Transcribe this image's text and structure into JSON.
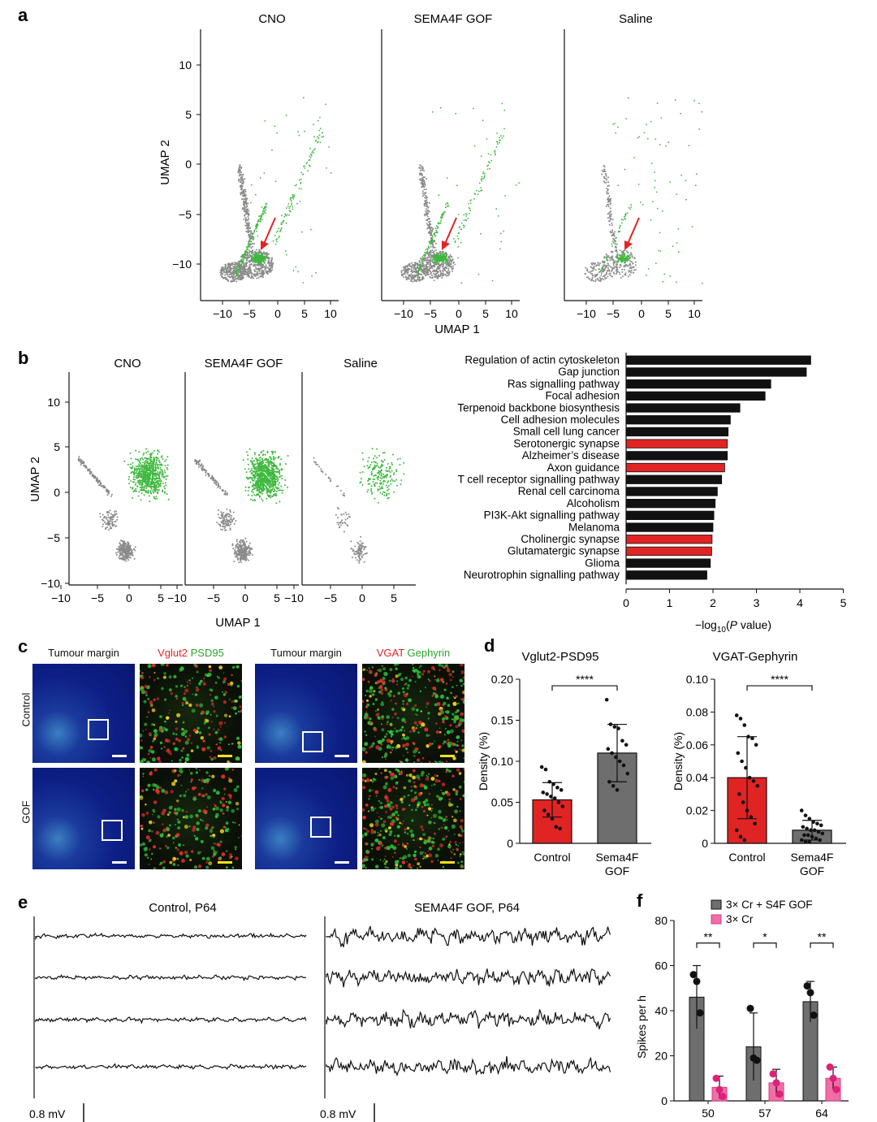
{
  "panel_letters": {
    "a": "a",
    "b": "b",
    "c": "c",
    "d": "d",
    "e": "e",
    "f": "f"
  },
  "colors": {
    "green": "#3fb83f",
    "gray": "#8a8a8a",
    "red": "#e02424",
    "black": "#111111",
    "pink": "#f06ea6",
    "dark_gray": "#6e6e6e",
    "blue_tissue": "#1428a0"
  },
  "panel_a": {
    "titles": [
      "CNO",
      "SEMA4F GOF",
      "Saline"
    ],
    "ylabel": "UMAP 2",
    "xlabel": "UMAP 1",
    "yticks": [
      "10",
      "5",
      "0",
      "−5",
      "−10"
    ],
    "xticks": [
      "−10",
      "−5",
      "0",
      "5",
      "10"
    ]
  },
  "panel_b": {
    "titles": [
      "CNO",
      "SEMA4F GOF",
      "Saline"
    ],
    "ylabel": "UMAP 2",
    "xlabel": "UMAP 1",
    "yticks": [
      "10",
      "5",
      "0",
      "−5",
      "−10"
    ],
    "xticks_first": [
      "−10",
      "−5",
      "0",
      "5"
    ],
    "xticks_mid": [
      "−10",
      "−5",
      "0",
      "5"
    ],
    "xticks_last": [
      "−10",
      "−5",
      "0",
      "5"
    ]
  },
  "panel_c": {
    "col_tumour_margin": "Tumour margin",
    "label_vglut2": "Vglut2",
    "label_psd95": "PSD95",
    "label_vgat": "VGAT",
    "label_gephyrin": "Gephyrin",
    "row_control": "Control",
    "row_gof": "GOF"
  },
  "panel_e": {
    "title_control": "Control, P64",
    "title_gof": "SEMA4F GOF, P64",
    "scale_label_left": "0.8 mV",
    "scale_label_right": "0.8 mV"
  },
  "chart_data": [
    {
      "type": "bar",
      "title": "",
      "xlabel": "−log10(P value)",
      "xlabel_main": "−log",
      "xlabel_sub": "10",
      "xlabel_paren": "(",
      "xlabel_p": "P",
      "xlabel_rest": " value)",
      "orientation": "horizontal",
      "xlim": [
        0,
        5
      ],
      "xticks": [
        "0",
        "1",
        "2",
        "3",
        "4",
        "5"
      ],
      "categories": [
        "Regulation of actin cytoskeleton",
        "Gap junction",
        "Ras signalling pathway",
        "Focal adhesion",
        "Terpenoid backbone biosynthesis",
        "Cell adhesion molecules",
        "Small cell lung cancer",
        "Serotonergic synapse",
        "Alzheimer’s disease",
        "Axon guidance",
        "T cell receptor signalling pathway",
        "Renal cell carcinoma",
        "Alcoholism",
        "PI3K-Akt signalling pathway",
        "Melanoma",
        "Cholinergic synapse",
        "Glutamatergic synapse",
        "Glioma",
        "Neurotrophin signalling pathway"
      ],
      "values": [
        4.25,
        4.15,
        3.33,
        3.2,
        2.62,
        2.4,
        2.35,
        2.33,
        2.33,
        2.27,
        2.2,
        2.1,
        2.05,
        2.02,
        2.0,
        1.98,
        1.97,
        1.94,
        1.86
      ],
      "highlight": [
        false,
        false,
        false,
        false,
        false,
        false,
        false,
        true,
        false,
        true,
        false,
        false,
        false,
        false,
        false,
        true,
        true,
        false,
        false
      ]
    },
    {
      "type": "bar",
      "title": "Vglut2-PSD95",
      "ylabel": "Density (%)",
      "ylim": [
        0,
        0.2
      ],
      "yticks": [
        "0",
        "0.05",
        "0.10",
        "0.15",
        "0.20"
      ],
      "categories": [
        "Control",
        "Sema4F GOF"
      ],
      "category_lines": [
        [
          "Control"
        ],
        [
          "Sema4F",
          "GOF"
        ]
      ],
      "values": [
        0.053,
        0.11
      ],
      "errors": [
        0.021,
        0.035
      ],
      "significance": "****",
      "points": [
        [
          0.093,
          0.09,
          0.075,
          0.072,
          0.068,
          0.065,
          0.062,
          0.06,
          0.057,
          0.055,
          0.05,
          0.045,
          0.04,
          0.035,
          0.03,
          0.02,
          0.018
        ],
        [
          0.175,
          0.145,
          0.142,
          0.14,
          0.125,
          0.12,
          0.115,
          0.11,
          0.105,
          0.1,
          0.095,
          0.085,
          0.075,
          0.07,
          0.065
        ]
      ]
    },
    {
      "type": "bar",
      "title": "VGAT-Gephyrin",
      "ylabel": "Density (%)",
      "ylim": [
        0,
        0.1
      ],
      "yticks": [
        "0",
        "0.02",
        "0.04",
        "0.06",
        "0.08",
        "0.10"
      ],
      "categories": [
        "Control",
        "Sema4F GOF"
      ],
      "category_lines": [
        [
          "Control"
        ],
        [
          "Sema4F",
          "GOF"
        ]
      ],
      "values": [
        0.04,
        0.008
      ],
      "errors": [
        0.025,
        0.006
      ],
      "significance": "****",
      "points": [
        [
          0.078,
          0.076,
          0.072,
          0.065,
          0.064,
          0.06,
          0.055,
          0.05,
          0.046,
          0.04,
          0.038,
          0.035,
          0.03,
          0.025,
          0.02,
          0.016,
          0.012,
          0.008,
          0.004,
          0.002
        ],
        [
          0.02,
          0.017,
          0.015,
          0.013,
          0.012,
          0.011,
          0.01,
          0.009,
          0.008,
          0.008,
          0.007,
          0.006,
          0.005,
          0.005,
          0.004,
          0.003,
          0.002,
          0.002,
          0.001,
          0.001
        ]
      ]
    },
    {
      "type": "bar",
      "title": "",
      "ylabel": "Spikes per h",
      "ylim": [
        0,
        80
      ],
      "yticks": [
        "0",
        "20",
        "40",
        "60",
        "80"
      ],
      "categories": [
        "50",
        "57",
        "64"
      ],
      "series": [
        {
          "name": "3× Cr + S4F GOF",
          "values": [
            46,
            24,
            44
          ],
          "errors": [
            14,
            15,
            9
          ],
          "points": [
            [
              56,
              53,
              39
            ],
            [
              41,
              19,
              18
            ],
            [
              51,
              48,
              38
            ]
          ]
        },
        {
          "name": "3× Cr",
          "values": [
            6,
            8,
            10
          ],
          "errors": [
            5,
            6,
            5
          ],
          "points": [
            [
              10,
              5,
              2
            ],
            [
              12,
              8,
              3
            ],
            [
              15,
              10,
              5
            ]
          ]
        }
      ],
      "significance": [
        "**",
        "*",
        "**"
      ]
    }
  ]
}
